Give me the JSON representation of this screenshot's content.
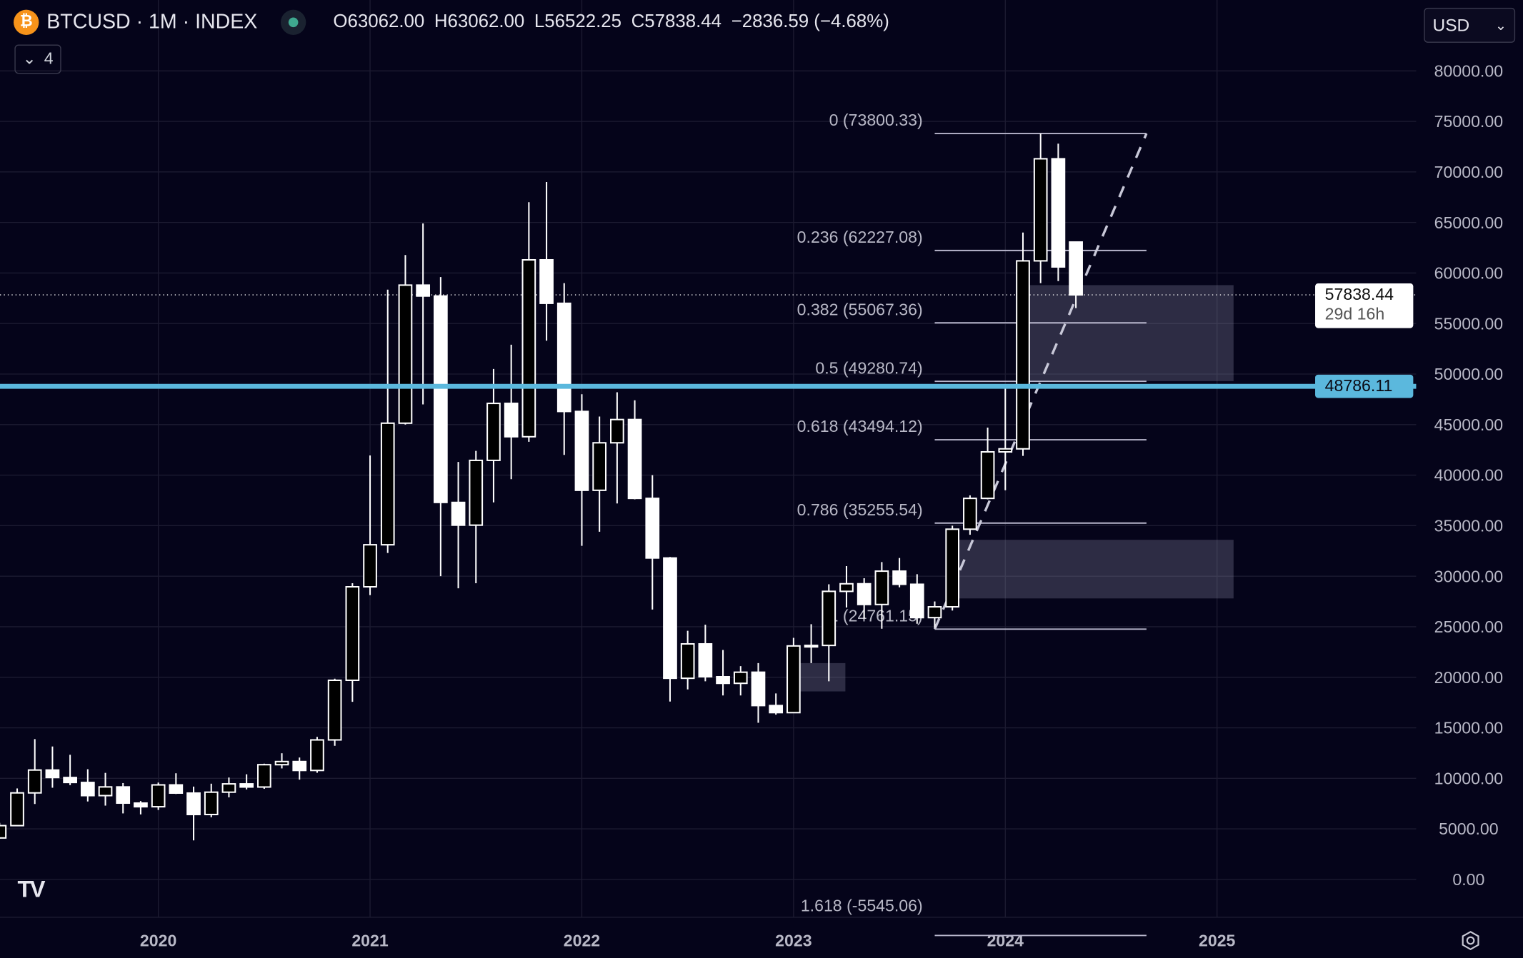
{
  "header": {
    "symbol": "BTCUSD · 1M · INDEX",
    "symbol_icon": "bitcoin-icon",
    "status_color": "#3fa88f",
    "ohlc": {
      "o_label": "O",
      "o": "63062.00",
      "h_label": "H",
      "h": "63062.00",
      "l_label": "L",
      "l": "56522.25",
      "c_label": "C",
      "c": "57838.44",
      "change": "−2836.59 (−4.68%)"
    },
    "collapse_count": "4",
    "currency": "USD"
  },
  "price_tags": {
    "last_price": "57838.44",
    "countdown": "29d 16h",
    "horizontal_line": "48786.11"
  },
  "colors": {
    "background": "#05041a",
    "up_body": "#000000",
    "down_body": "#ffffff",
    "horizontal_line": "#5bb8dd",
    "zone": "#8c8aa6"
  },
  "chart_data": {
    "type": "candlestick",
    "title": "",
    "xlabel": "",
    "ylabel": "",
    "ylim": [
      0,
      80000
    ],
    "y_ticks": [
      "80000.00",
      "75000.00",
      "70000.00",
      "65000.00",
      "60000.00",
      "55000.00",
      "50000.00",
      "45000.00",
      "40000.00",
      "35000.00",
      "30000.00",
      "25000.00",
      "20000.00",
      "15000.00",
      "10000.00",
      "5000.00",
      "0.00"
    ],
    "x_ticks": [
      "2020",
      "2021",
      "2022",
      "2023",
      "2024",
      "2025"
    ],
    "grid": true,
    "candles": [
      {
        "t": "2019-04",
        "o": 4100,
        "h": 5600,
        "l": 4030,
        "c": 5320
      },
      {
        "t": "2019-05",
        "o": 5320,
        "h": 9000,
        "l": 5300,
        "c": 8560
      },
      {
        "t": "2019-06",
        "o": 8560,
        "h": 13880,
        "l": 7460,
        "c": 10820
      },
      {
        "t": "2019-07",
        "o": 10820,
        "h": 13150,
        "l": 9070,
        "c": 10080
      },
      {
        "t": "2019-08",
        "o": 10080,
        "h": 12330,
        "l": 9330,
        "c": 9590
      },
      {
        "t": "2019-09",
        "o": 9590,
        "h": 10900,
        "l": 7710,
        "c": 8290
      },
      {
        "t": "2019-10",
        "o": 8290,
        "h": 10540,
        "l": 7300,
        "c": 9150
      },
      {
        "t": "2019-11",
        "o": 9150,
        "h": 9530,
        "l": 6530,
        "c": 7550
      },
      {
        "t": "2019-12",
        "o": 7550,
        "h": 7750,
        "l": 6430,
        "c": 7190
      },
      {
        "t": "2020-01",
        "o": 7190,
        "h": 9580,
        "l": 6870,
        "c": 9350
      },
      {
        "t": "2020-02",
        "o": 9350,
        "h": 10500,
        "l": 8450,
        "c": 8540
      },
      {
        "t": "2020-03",
        "o": 8540,
        "h": 9180,
        "l": 3860,
        "c": 6420
      },
      {
        "t": "2020-04",
        "o": 6420,
        "h": 9470,
        "l": 6150,
        "c": 8630
      },
      {
        "t": "2020-05",
        "o": 8630,
        "h": 10080,
        "l": 8120,
        "c": 9450
      },
      {
        "t": "2020-06",
        "o": 9450,
        "h": 10400,
        "l": 8900,
        "c": 9140
      },
      {
        "t": "2020-07",
        "o": 9140,
        "h": 11450,
        "l": 8960,
        "c": 11350
      },
      {
        "t": "2020-08",
        "o": 11350,
        "h": 12480,
        "l": 10980,
        "c": 11660
      },
      {
        "t": "2020-09",
        "o": 11660,
        "h": 12060,
        "l": 9870,
        "c": 10780
      },
      {
        "t": "2020-10",
        "o": 10780,
        "h": 14100,
        "l": 10550,
        "c": 13800
      },
      {
        "t": "2020-11",
        "o": 13800,
        "h": 19860,
        "l": 13220,
        "c": 19700
      },
      {
        "t": "2020-12",
        "o": 19700,
        "h": 29300,
        "l": 17570,
        "c": 28950
      },
      {
        "t": "2021-01",
        "o": 28950,
        "h": 41950,
        "l": 28130,
        "c": 33110
      },
      {
        "t": "2021-02",
        "o": 33110,
        "h": 58350,
        "l": 32300,
        "c": 45140
      },
      {
        "t": "2021-03",
        "o": 45140,
        "h": 61780,
        "l": 45000,
        "c": 58800
      },
      {
        "t": "2021-04",
        "o": 58800,
        "h": 64900,
        "l": 47000,
        "c": 57720
      },
      {
        "t": "2021-05",
        "o": 57720,
        "h": 59600,
        "l": 30000,
        "c": 37300
      },
      {
        "t": "2021-06",
        "o": 37300,
        "h": 41300,
        "l": 28800,
        "c": 35050
      },
      {
        "t": "2021-07",
        "o": 35050,
        "h": 42400,
        "l": 29300,
        "c": 41460
      },
      {
        "t": "2021-08",
        "o": 41460,
        "h": 50500,
        "l": 37300,
        "c": 47100
      },
      {
        "t": "2021-09",
        "o": 47100,
        "h": 52900,
        "l": 39600,
        "c": 43800
      },
      {
        "t": "2021-10",
        "o": 43800,
        "h": 67000,
        "l": 43300,
        "c": 61300
      },
      {
        "t": "2021-11",
        "o": 61300,
        "h": 69000,
        "l": 53300,
        "c": 57000
      },
      {
        "t": "2021-12",
        "o": 57000,
        "h": 59000,
        "l": 42000,
        "c": 46300
      },
      {
        "t": "2022-01",
        "o": 46300,
        "h": 48000,
        "l": 33000,
        "c": 38500
      },
      {
        "t": "2022-02",
        "o": 38500,
        "h": 45800,
        "l": 34400,
        "c": 43200
      },
      {
        "t": "2022-03",
        "o": 43200,
        "h": 48200,
        "l": 37200,
        "c": 45500
      },
      {
        "t": "2022-04",
        "o": 45500,
        "h": 47400,
        "l": 37600,
        "c": 37700
      },
      {
        "t": "2022-05",
        "o": 37700,
        "h": 40000,
        "l": 26700,
        "c": 31800
      },
      {
        "t": "2022-06",
        "o": 31800,
        "h": 31900,
        "l": 17600,
        "c": 19900
      },
      {
        "t": "2022-07",
        "o": 19900,
        "h": 24600,
        "l": 18800,
        "c": 23300
      },
      {
        "t": "2022-08",
        "o": 23300,
        "h": 25200,
        "l": 19600,
        "c": 20050
      },
      {
        "t": "2022-09",
        "o": 20050,
        "h": 22700,
        "l": 18200,
        "c": 19400
      },
      {
        "t": "2022-10",
        "o": 19400,
        "h": 21100,
        "l": 18200,
        "c": 20500
      },
      {
        "t": "2022-11",
        "o": 20500,
        "h": 21400,
        "l": 15500,
        "c": 17200
      },
      {
        "t": "2022-12",
        "o": 17200,
        "h": 18400,
        "l": 16300,
        "c": 16500
      },
      {
        "t": "2023-01",
        "o": 16500,
        "h": 23900,
        "l": 16500,
        "c": 23100
      },
      {
        "t": "2023-02",
        "o": 23100,
        "h": 25250,
        "l": 21400,
        "c": 23150
      },
      {
        "t": "2023-03",
        "o": 23150,
        "h": 29200,
        "l": 19600,
        "c": 28500
      },
      {
        "t": "2023-04",
        "o": 28500,
        "h": 31000,
        "l": 26900,
        "c": 29250
      },
      {
        "t": "2023-05",
        "o": 29250,
        "h": 29800,
        "l": 25800,
        "c": 27200
      },
      {
        "t": "2023-06",
        "o": 27200,
        "h": 31400,
        "l": 24800,
        "c": 30500
      },
      {
        "t": "2023-07",
        "o": 30500,
        "h": 31800,
        "l": 28900,
        "c": 29200
      },
      {
        "t": "2023-08",
        "o": 29200,
        "h": 30200,
        "l": 25300,
        "c": 25900
      },
      {
        "t": "2023-09",
        "o": 25900,
        "h": 27500,
        "l": 24900,
        "c": 26970
      },
      {
        "t": "2023-10",
        "o": 26970,
        "h": 35000,
        "l": 26600,
        "c": 34650
      },
      {
        "t": "2023-11",
        "o": 34650,
        "h": 38000,
        "l": 34100,
        "c": 37700
      },
      {
        "t": "2023-12",
        "o": 37700,
        "h": 44700,
        "l": 37600,
        "c": 42300
      },
      {
        "t": "2024-01",
        "o": 42300,
        "h": 48900,
        "l": 38500,
        "c": 42600
      },
      {
        "t": "2024-02",
        "o": 42600,
        "h": 64000,
        "l": 41900,
        "c": 61200
      },
      {
        "t": "2024-03",
        "o": 61200,
        "h": 73800,
        "l": 59000,
        "c": 71300
      },
      {
        "t": "2024-04",
        "o": 71300,
        "h": 72800,
        "l": 59200,
        "c": 60600
      },
      {
        "t": "2024-05",
        "o": 63062,
        "h": 63062,
        "l": 56522.25,
        "c": 57838.44
      }
    ],
    "fibonacci": {
      "from": {
        "t": "2023-09",
        "price": 24761.15
      },
      "to": {
        "t": "2024-03",
        "price": 73800.33
      },
      "extends_to": "2024-09",
      "levels": [
        {
          "ratio": 0,
          "price": 73800.33,
          "label": "0 (73800.33)"
        },
        {
          "ratio": 0.236,
          "price": 62227.08,
          "label": "0.236 (62227.08)"
        },
        {
          "ratio": 0.382,
          "price": 55067.36,
          "label": "0.382 (55067.36)"
        },
        {
          "ratio": 0.5,
          "price": 49280.74,
          "label": "0.5 (49280.74)"
        },
        {
          "ratio": 0.618,
          "price": 43494.12,
          "label": "0.618 (43494.12)"
        },
        {
          "ratio": 0.786,
          "price": 35255.54,
          "label": "0.786 (35255.54)"
        },
        {
          "ratio": 1,
          "price": 24761.15,
          "label": "1 (24761.15)"
        },
        {
          "ratio": 1.618,
          "price": -5545.06,
          "label": "1.618 (-5545.06)"
        }
      ]
    },
    "zones": [
      {
        "from": "2024-02",
        "to": "2025-01",
        "top": 58800,
        "bottom": 49300
      },
      {
        "from": "2023-10",
        "to": "2025-01",
        "top": 33600,
        "bottom": 27800
      },
      {
        "from": "2023-01",
        "to": "2023-03",
        "top": 21400,
        "bottom": 18600
      }
    ],
    "horizontal_line": 48786.11,
    "last_price_line": 57838.44
  }
}
